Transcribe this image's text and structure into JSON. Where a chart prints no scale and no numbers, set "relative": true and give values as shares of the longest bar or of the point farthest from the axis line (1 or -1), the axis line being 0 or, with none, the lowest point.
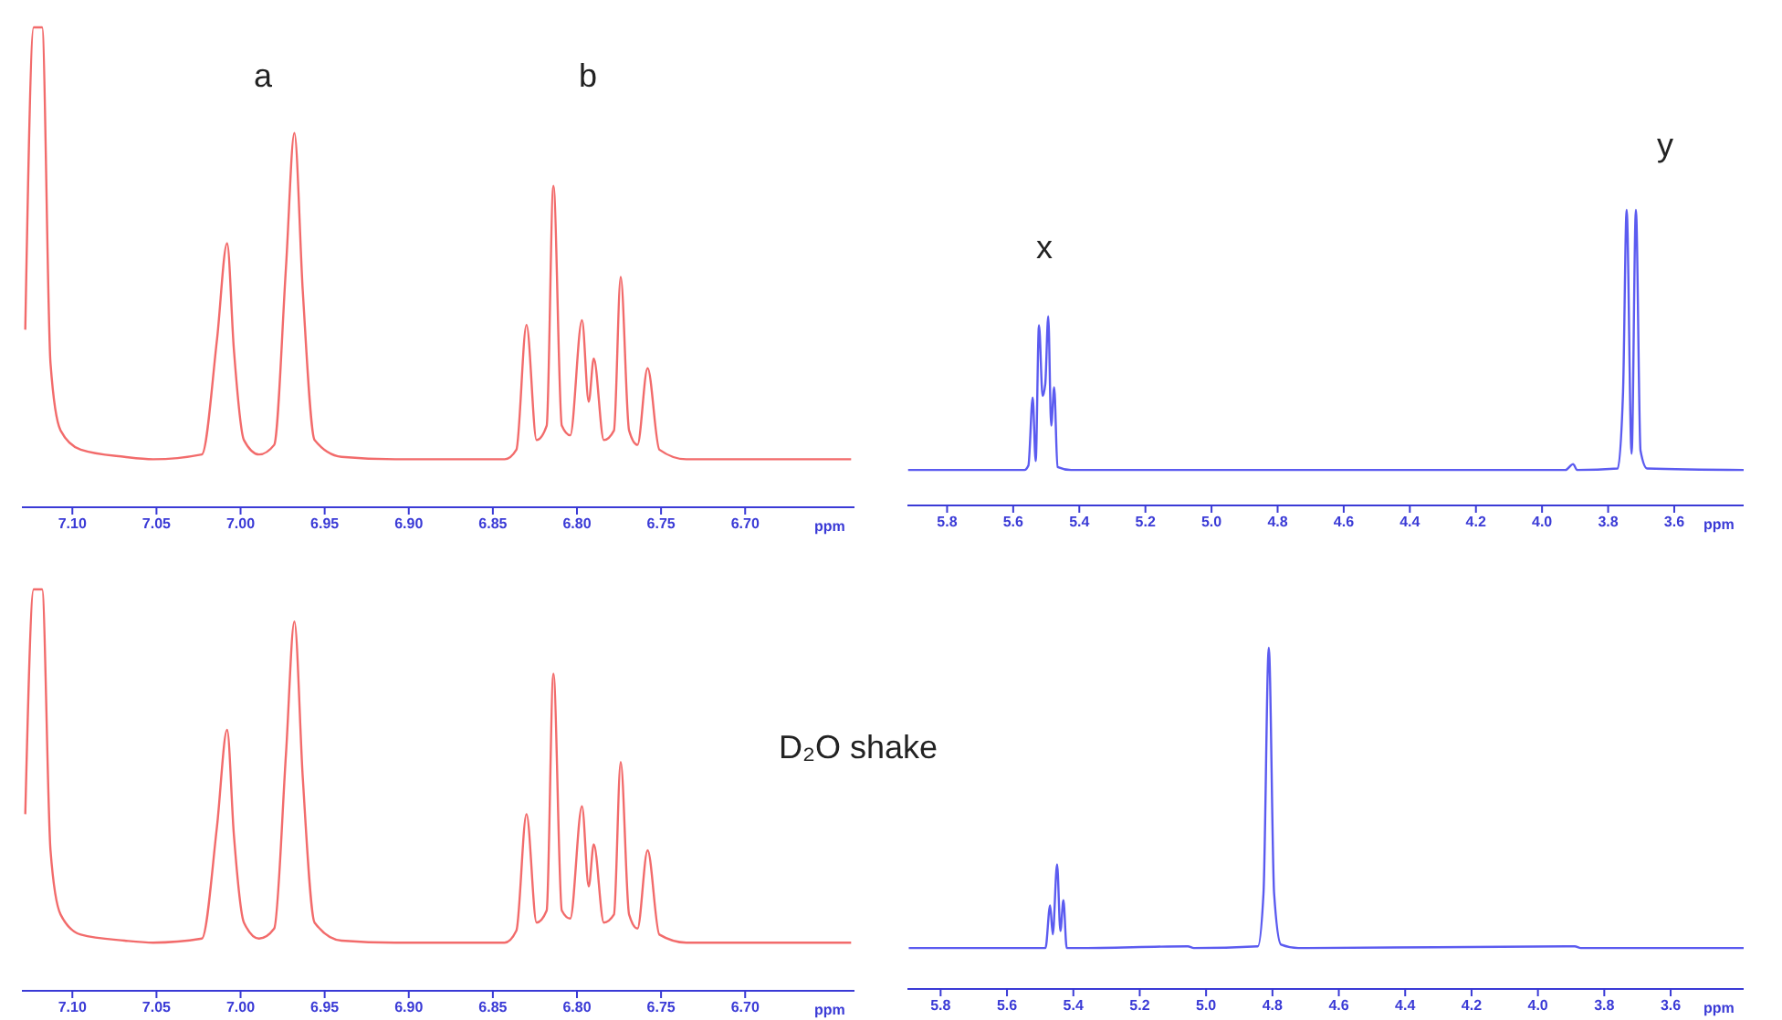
{
  "chart_data": [
    {
      "type": "line",
      "relative": true,
      "color": "#f26b6b",
      "xlabel": "ppm",
      "xlim": [
        7.13,
        6.635
      ],
      "xticks": [
        {
          "value": 7.1,
          "label": "7.10"
        },
        {
          "value": 7.05,
          "label": "7.05"
        },
        {
          "value": 7.0,
          "label": "7.00"
        },
        {
          "value": 6.95,
          "label": "6.95"
        },
        {
          "value": 6.9,
          "label": "6.90"
        },
        {
          "value": 6.85,
          "label": "6.85"
        },
        {
          "value": 6.8,
          "label": "6.80"
        },
        {
          "value": 6.75,
          "label": "6.75"
        },
        {
          "value": 6.7,
          "label": "6.70"
        }
      ],
      "x": [
        7.128,
        7.123,
        7.118,
        7.113,
        7.107,
        7.095,
        7.069,
        7.052,
        7.023,
        7.014,
        7.008,
        7.004,
        6.998,
        6.989,
        6.98,
        6.973,
        6.968,
        6.963,
        6.956,
        6.94,
        6.908,
        6.843,
        6.836,
        6.83,
        6.824,
        6.818,
        6.814,
        6.809,
        6.804,
        6.797,
        6.793,
        6.79,
        6.784,
        6.778,
        6.774,
        6.769,
        6.764,
        6.758,
        6.751,
        6.735,
        6.637
      ],
      "values": [
        0.37,
        1,
        1,
        0.3,
        0.16,
        0.12,
        0.105,
        0.1,
        0.11,
        0.35,
        0.55,
        0.33,
        0.14,
        0.11,
        0.13,
        0.5,
        0.78,
        0.45,
        0.14,
        0.105,
        0.1,
        0.1,
        0.12,
        0.38,
        0.14,
        0.17,
        0.67,
        0.17,
        0.15,
        0.39,
        0.22,
        0.31,
        0.14,
        0.16,
        0.48,
        0.16,
        0.13,
        0.29,
        0.12,
        0.1,
        0.1
      ],
      "annotations": [
        "a",
        "b"
      ]
    },
    {
      "type": "line",
      "relative": true,
      "color": "#5b5bf0",
      "xlabel": "ppm",
      "xlim": [
        5.92,
        3.39
      ],
      "xticks": [
        5.8,
        5.6,
        5.4,
        5.2,
        {
          "value": 5.0,
          "label": "5.0"
        },
        4.8,
        4.6,
        4.4,
        4.2,
        {
          "value": 4.0,
          "label": "4.0"
        },
        3.8,
        3.6
      ],
      "x": [
        5.918,
        5.566,
        5.554,
        5.541,
        5.532,
        5.522,
        5.511,
        5.503,
        5.494,
        5.485,
        5.476,
        5.466,
        5.425,
        3.929,
        3.906,
        3.894,
        3.771,
        3.755,
        3.744,
        3.729,
        3.716,
        3.702,
        3.682,
        3.39
      ],
      "values": [
        0.12,
        0.12,
        0.135,
        0.365,
        0.15,
        0.61,
        0.37,
        0.41,
        0.64,
        0.27,
        0.4,
        0.13,
        0.12,
        0.12,
        0.14,
        0.12,
        0.125,
        0.38,
        1,
        0.175,
        1,
        0.185,
        0.125,
        0.12
      ],
      "annotations": [
        "x",
        "y"
      ]
    },
    {
      "type": "line",
      "relative": true,
      "color": "#f26b6b",
      "xlabel": "ppm",
      "xlim": [
        7.13,
        6.635
      ],
      "xticks": [
        {
          "value": 7.1,
          "label": "7.10"
        },
        {
          "value": 7.05,
          "label": "7.05"
        },
        {
          "value": 7.0,
          "label": "7.00"
        },
        {
          "value": 6.95,
          "label": "6.95"
        },
        {
          "value": 6.9,
          "label": "6.90"
        },
        {
          "value": 6.85,
          "label": "6.85"
        },
        {
          "value": 6.8,
          "label": "6.80"
        },
        {
          "value": 6.75,
          "label": "6.75"
        },
        {
          "value": 6.7,
          "label": "6.70"
        }
      ],
      "x": [
        7.128,
        7.123,
        7.118,
        7.113,
        7.107,
        7.095,
        7.069,
        7.052,
        7.023,
        7.014,
        7.008,
        7.004,
        6.998,
        6.989,
        6.98,
        6.973,
        6.968,
        6.963,
        6.956,
        6.94,
        6.908,
        6.843,
        6.836,
        6.83,
        6.824,
        6.818,
        6.814,
        6.809,
        6.804,
        6.797,
        6.793,
        6.79,
        6.784,
        6.778,
        6.774,
        6.769,
        6.764,
        6.758,
        6.751,
        6.735,
        6.637
      ],
      "values": [
        0.44,
        1,
        1,
        0.35,
        0.19,
        0.14,
        0.125,
        0.12,
        0.13,
        0.41,
        0.65,
        0.39,
        0.17,
        0.13,
        0.155,
        0.59,
        0.92,
        0.53,
        0.17,
        0.125,
        0.12,
        0.12,
        0.15,
        0.44,
        0.17,
        0.2,
        0.79,
        0.2,
        0.18,
        0.46,
        0.26,
        0.365,
        0.17,
        0.19,
        0.57,
        0.19,
        0.155,
        0.35,
        0.14,
        0.12,
        0.12
      ],
      "annotations": [
        "D₂O shake"
      ]
    },
    {
      "type": "line",
      "relative": true,
      "color": "#5b5bf0",
      "xlabel": "ppm",
      "xlim": [
        5.9,
        3.38
      ],
      "xticks": [
        5.8,
        5.6,
        5.4,
        5.2,
        {
          "value": 5.0,
          "label": "5.0"
        },
        4.8,
        4.6,
        4.4,
        4.2,
        {
          "value": 4.0,
          "label": "4.0"
        },
        3.8,
        3.6
      ],
      "x": [
        5.896,
        5.484,
        5.47,
        5.462,
        5.449,
        5.439,
        5.43,
        5.42,
        5.388,
        5.055,
        5.037,
        4.844,
        4.827,
        4.811,
        4.795,
        4.774,
        4.722,
        3.889,
        3.871,
        3.38
      ],
      "values": [
        0.12,
        0.12,
        0.245,
        0.16,
        0.365,
        0.17,
        0.26,
        0.12,
        0.12,
        0.125,
        0.12,
        0.125,
        0.28,
        1,
        0.28,
        0.13,
        0.12,
        0.125,
        0.12,
        0.12
      ]
    }
  ]
}
